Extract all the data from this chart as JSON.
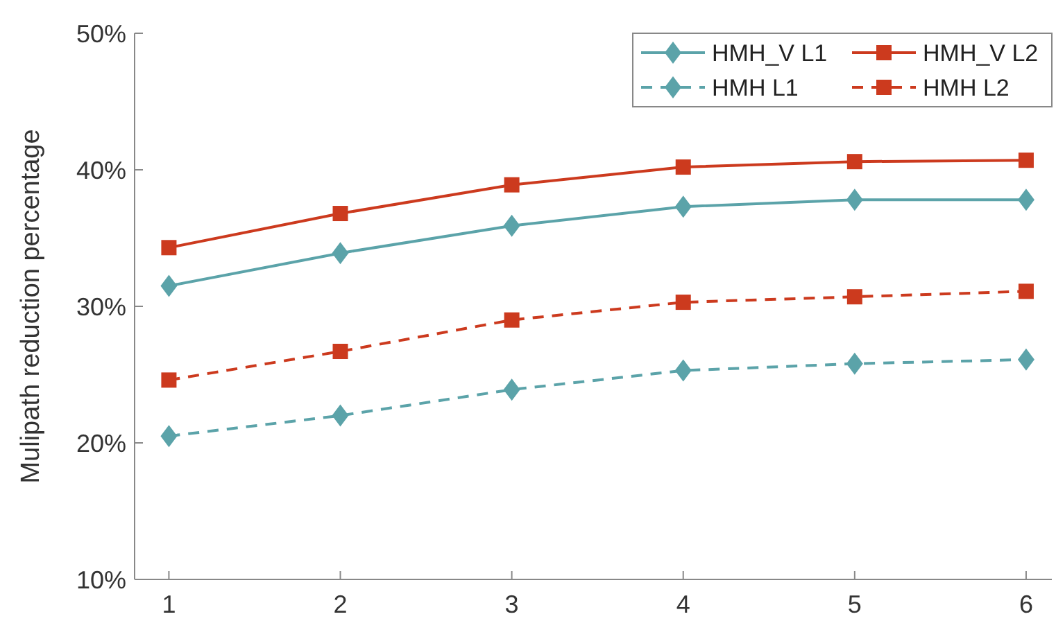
{
  "chart_data": {
    "type": "line",
    "ylabel": "Mulipath reduction percentage",
    "x": [
      1,
      2,
      3,
      4,
      5,
      6
    ],
    "xlim": [
      0.8,
      6.15
    ],
    "xticks": [
      1,
      2,
      3,
      4,
      5,
      6
    ],
    "ylim": [
      10,
      50
    ],
    "yticks": [
      {
        "value": 10,
        "label": "10%"
      },
      {
        "value": 20,
        "label": "20%"
      },
      {
        "value": 30,
        "label": "30%"
      },
      {
        "value": 40,
        "label": "40%"
      },
      {
        "value": 50,
        "label": "50%"
      }
    ],
    "legend": "top right",
    "grid": false,
    "series": [
      {
        "name": "HMH_V L1",
        "color": "#5ba3a9",
        "marker": "diamond",
        "line_style": "solid",
        "values": [
          31.5,
          33.9,
          35.9,
          37.3,
          37.8,
          37.8
        ]
      },
      {
        "name": "HMH_V L2",
        "color": "#cc3a1e",
        "marker": "square",
        "line_style": "solid",
        "values": [
          34.3,
          36.8,
          38.9,
          40.2,
          40.6,
          40.7
        ]
      },
      {
        "name": "HMH L1",
        "color": "#5ba3a9",
        "marker": "diamond",
        "line_style": "dashed",
        "values": [
          20.5,
          22.0,
          23.9,
          25.3,
          25.8,
          26.1
        ]
      },
      {
        "name": "HMH L2",
        "color": "#cc3a1e",
        "marker": "square",
        "line_style": "dashed",
        "values": [
          24.6,
          26.7,
          29.0,
          30.3,
          30.7,
          31.1
        ]
      }
    ]
  }
}
